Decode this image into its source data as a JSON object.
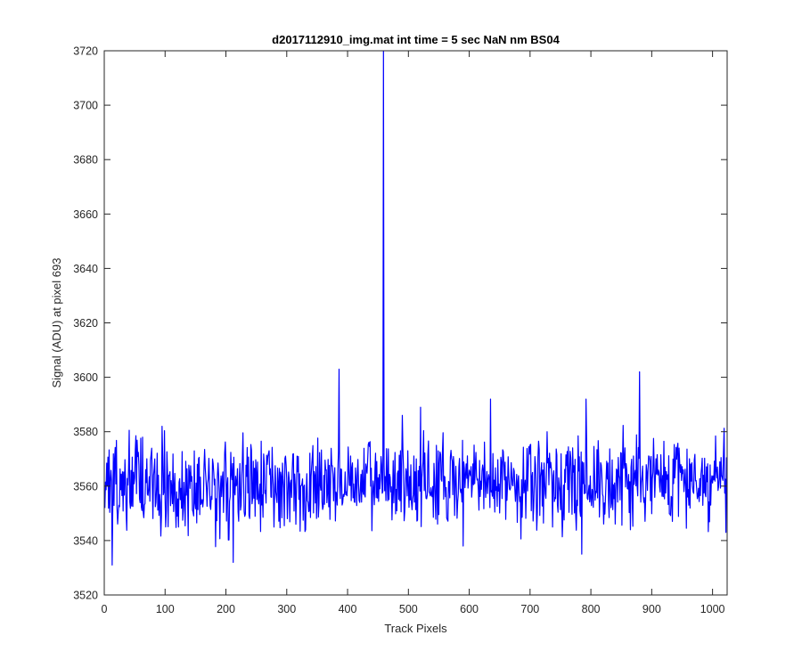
{
  "chart_data": {
    "type": "line",
    "title": "d2017112910_img.mat int time = 5 sec  NaN nm BS04",
    "xlabel": "Track Pixels",
    "ylabel": "Signal (ADU) at pixel 693",
    "xlim": [
      0,
      1024
    ],
    "ylim": [
      3520,
      3720
    ],
    "x_ticks": [
      0,
      100,
      200,
      300,
      400,
      500,
      600,
      700,
      800,
      900,
      1000
    ],
    "y_ticks": [
      3520,
      3540,
      3560,
      3580,
      3600,
      3620,
      3640,
      3660,
      3680,
      3700,
      3720
    ],
    "grid": false,
    "line_color": "#0000ff",
    "series": [
      {
        "x_start": 1,
        "x_step": 1,
        "baseline_mean": 3561,
        "baseline_noise_sd": 8,
        "baseline_trend_per_pixel": 0.004,
        "peaks": [
          {
            "x": 13,
            "y": 3531
          },
          {
            "x": 63,
            "y": 3578
          },
          {
            "x": 95,
            "y": 3582
          },
          {
            "x": 212,
            "y": 3532
          },
          {
            "x": 386,
            "y": 3603
          },
          {
            "x": 459,
            "y": 3720
          },
          {
            "x": 490,
            "y": 3586
          },
          {
            "x": 520,
            "y": 3589
          },
          {
            "x": 590,
            "y": 3538
          },
          {
            "x": 635,
            "y": 3592
          },
          {
            "x": 785,
            "y": 3535
          },
          {
            "x": 792,
            "y": 3592
          },
          {
            "x": 880,
            "y": 3602
          },
          {
            "x": 1022,
            "y": 3543
          }
        ]
      }
    ]
  }
}
